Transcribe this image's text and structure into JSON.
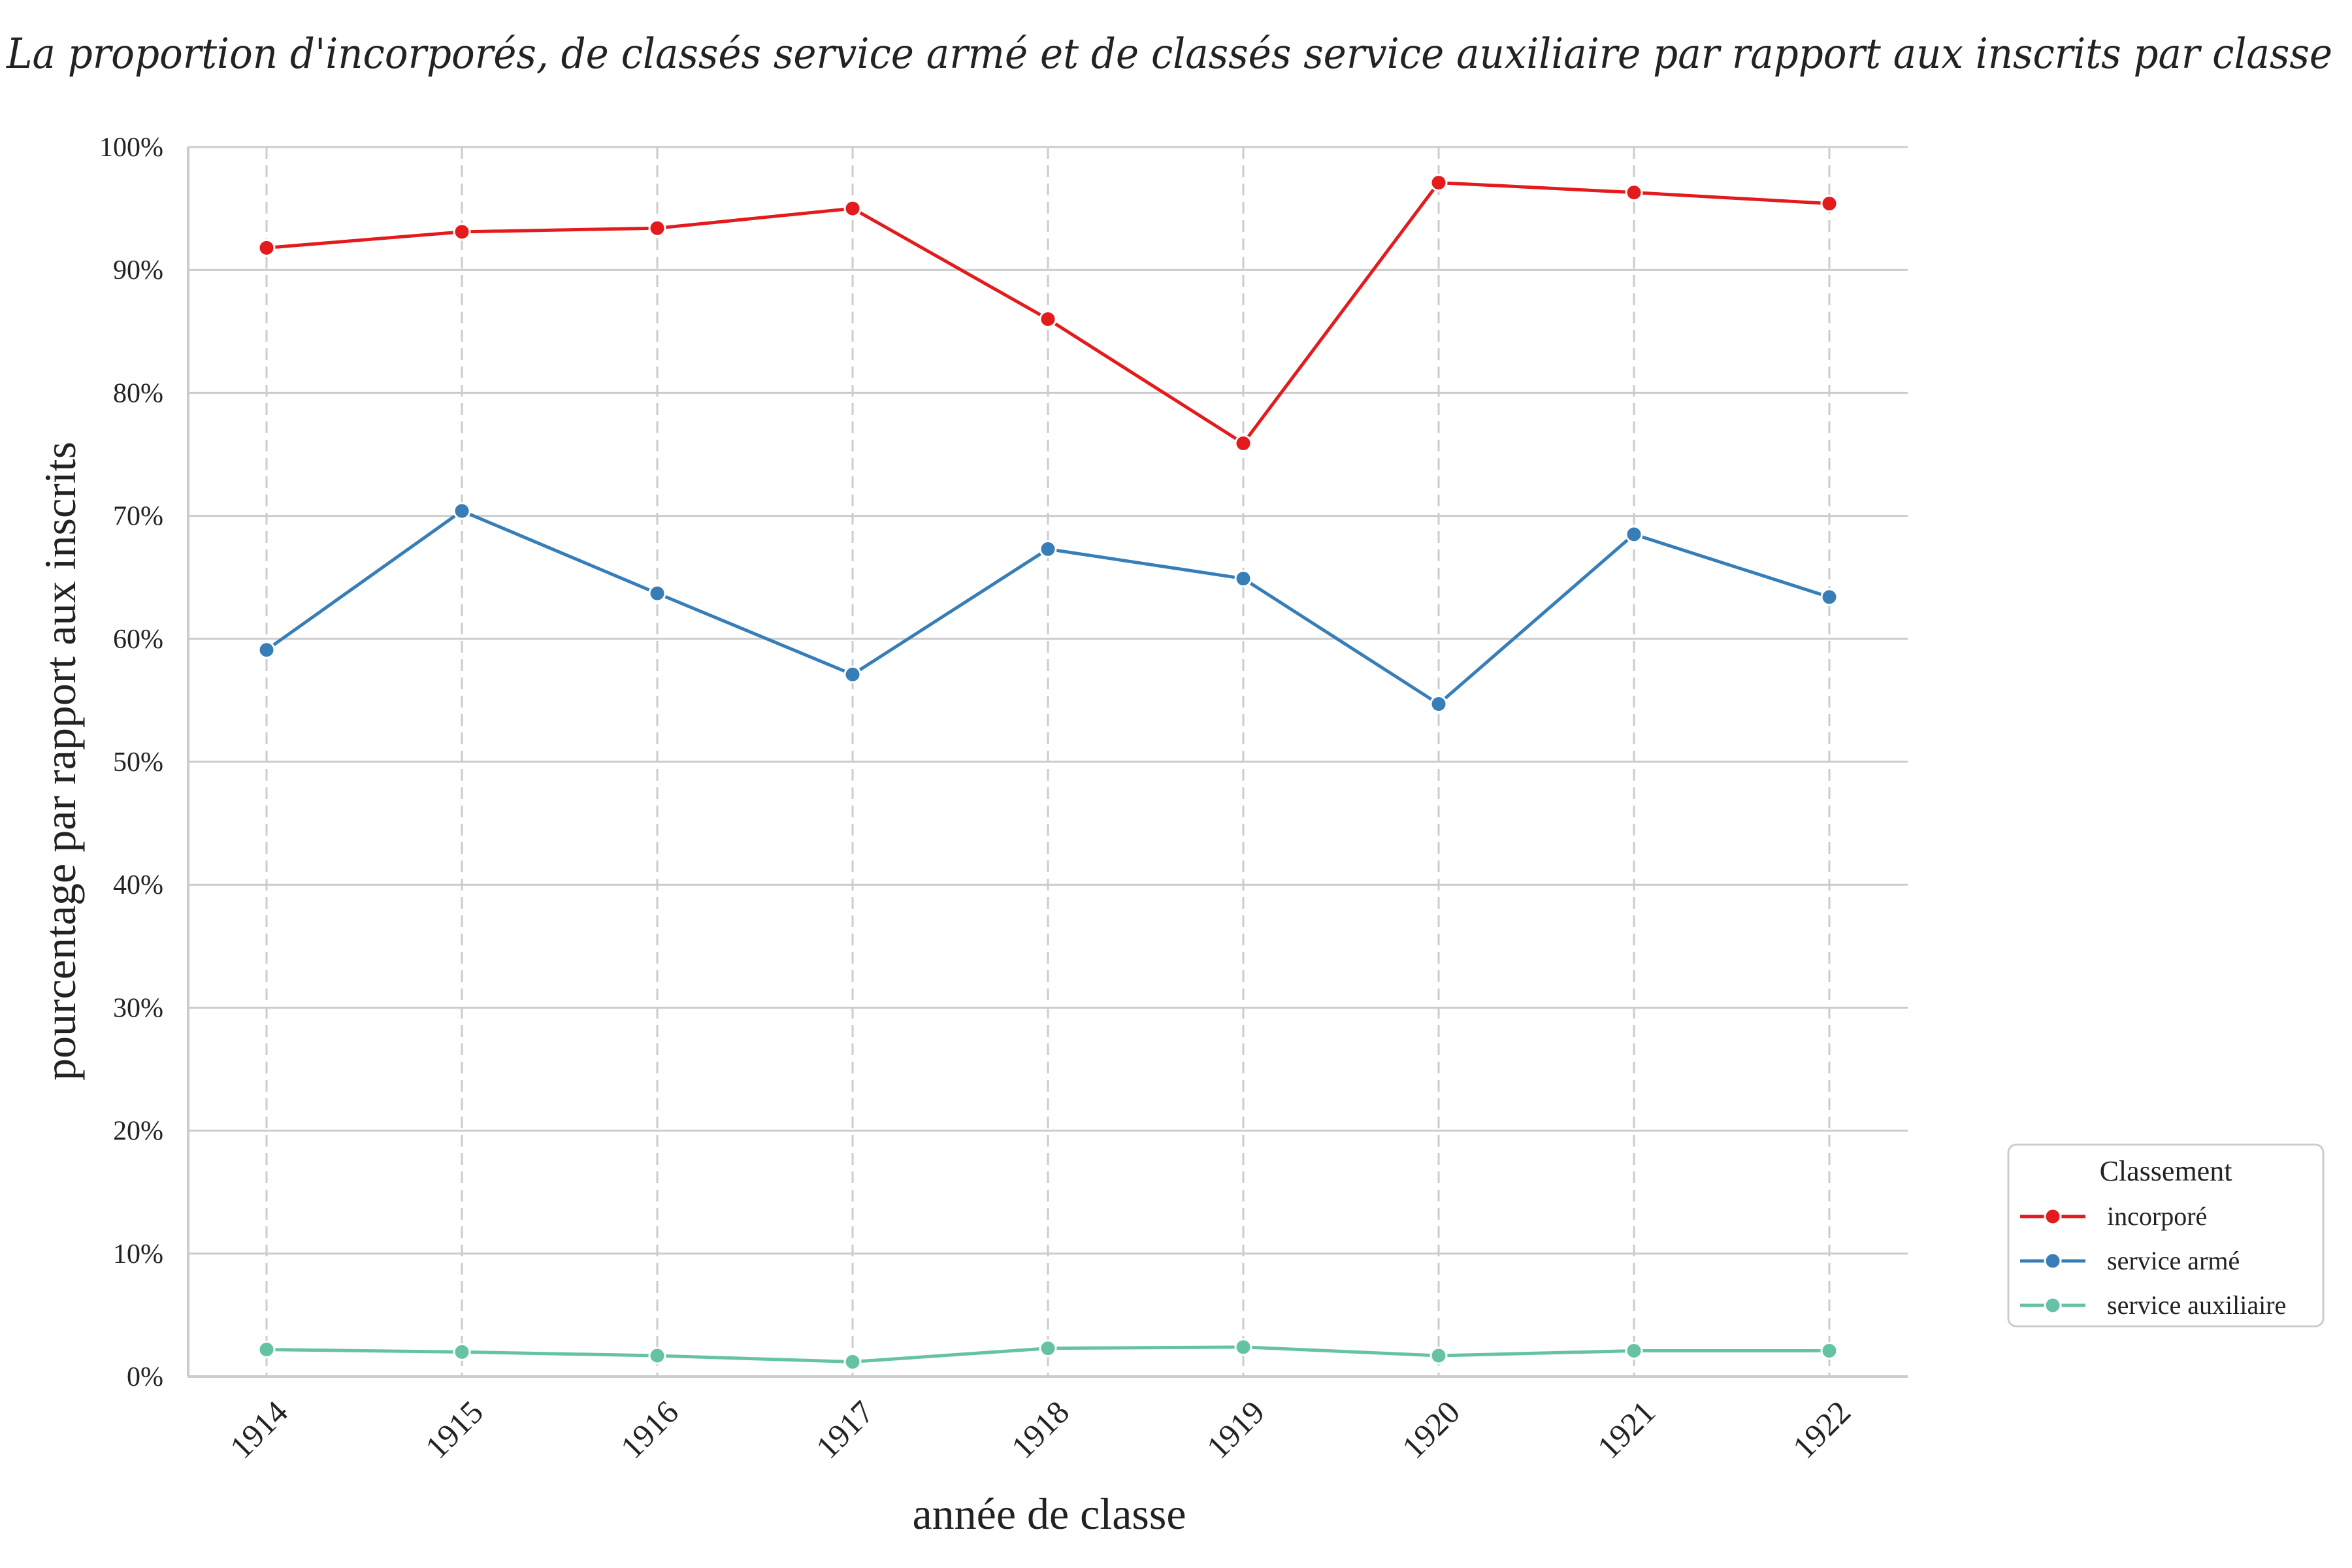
{
  "chart_data": {
    "type": "line",
    "title": "La proportion d'incorporés, de classés service armé et de classés service auxiliaire par rapport aux inscrits par classe",
    "xlabel": "année de classe",
    "ylabel": "pourcentage par rapport aux inscrits",
    "categories": [
      "1914",
      "1915",
      "1916",
      "1917",
      "1918",
      "1919",
      "1920",
      "1921",
      "1922"
    ],
    "ylim": [
      0,
      100
    ],
    "yticks": [
      0,
      10,
      20,
      30,
      40,
      50,
      60,
      70,
      80,
      90,
      100
    ],
    "ytick_suffix": "%",
    "grid": true,
    "legend": {
      "title": "Classement",
      "placement": "right-bottom"
    },
    "series": [
      {
        "name": "incorporé",
        "color": "#e41a1c",
        "values": [
          91.8,
          93.1,
          93.4,
          95.0,
          86.0,
          75.9,
          97.1,
          96.3,
          95.4
        ]
      },
      {
        "name": "service armé",
        "color": "#377eb8",
        "values": [
          59.1,
          70.4,
          63.7,
          57.1,
          67.3,
          64.9,
          54.7,
          68.5,
          63.4
        ]
      },
      {
        "name": "service auxiliaire",
        "color": "#66c2a5",
        "values": [
          2.2,
          2.0,
          1.7,
          1.2,
          2.3,
          2.4,
          1.7,
          2.1,
          2.1
        ]
      }
    ]
  }
}
